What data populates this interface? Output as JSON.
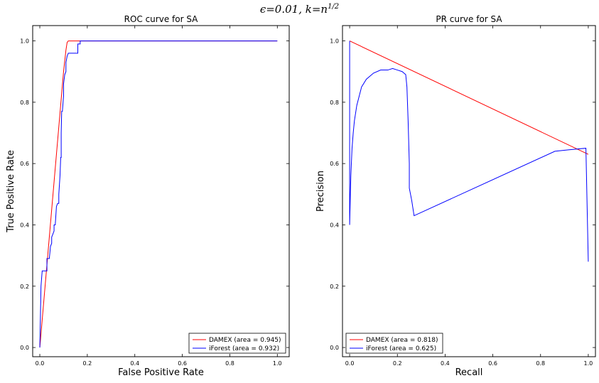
{
  "suptitle": {
    "epsilon_symbol": "ϵ",
    "epsilon_value": "=0.01, ",
    "k_symbol": "k",
    "k_value": "=n",
    "k_exponent": "1/2"
  },
  "colors": {
    "damex": "#ff0000",
    "iforest": "#0000ff"
  },
  "chart_data": [
    {
      "type": "line",
      "title": "ROC curve for SA",
      "xlabel": "False Positive Rate",
      "ylabel": "True Positive Rate",
      "xlim": [
        -0.03,
        1.05
      ],
      "ylim": [
        -0.03,
        1.05
      ],
      "xticks": [
        "0.0",
        "0.2",
        "0.4",
        "0.6",
        "0.8",
        "1.0"
      ],
      "yticks": [
        "0.0",
        "0.2",
        "0.4",
        "0.6",
        "0.8",
        "1.0"
      ],
      "legend_position": "bottom-right",
      "series": [
        {
          "name": "DAMEX (area = 0.945)",
          "color": "#ff0000",
          "x": [
            0.0,
            0.02,
            0.04,
            0.06,
            0.08,
            0.1,
            0.11,
            0.115,
            0.12,
            0.15,
            1.0
          ],
          "y": [
            0.0,
            0.18,
            0.36,
            0.54,
            0.72,
            0.9,
            0.97,
            0.995,
            1.0,
            1.0,
            1.0
          ]
        },
        {
          "name": "iForest (area = 0.932)",
          "color": "#0000ff",
          "x": [
            0.0,
            0.002,
            0.005,
            0.01,
            0.01,
            0.02,
            0.03,
            0.03,
            0.04,
            0.045,
            0.05,
            0.05,
            0.055,
            0.06,
            0.06,
            0.065,
            0.07,
            0.07,
            0.075,
            0.08,
            0.08,
            0.085,
            0.088,
            0.09,
            0.09,
            0.092,
            0.095,
            0.1,
            0.1,
            0.105,
            0.11,
            0.11,
            0.115,
            0.12,
            0.12,
            0.16,
            0.16,
            0.17,
            0.17,
            0.2,
            1.0
          ],
          "y": [
            0.0,
            0.08,
            0.2,
            0.25,
            0.25,
            0.25,
            0.25,
            0.29,
            0.29,
            0.33,
            0.34,
            0.36,
            0.37,
            0.38,
            0.4,
            0.4,
            0.46,
            0.46,
            0.47,
            0.47,
            0.5,
            0.56,
            0.62,
            0.62,
            0.7,
            0.77,
            0.77,
            0.82,
            0.86,
            0.89,
            0.9,
            0.93,
            0.95,
            0.96,
            0.96,
            0.96,
            0.99,
            0.99,
            1.0,
            1.0,
            1.0
          ]
        }
      ]
    },
    {
      "type": "line",
      "title": "PR curve for SA",
      "xlabel": "Recall",
      "ylabel": "Precision",
      "xlim": [
        -0.03,
        1.03
      ],
      "ylim": [
        -0.03,
        1.05
      ],
      "xticks": [
        "0.0",
        "0.2",
        "0.4",
        "0.6",
        "0.8",
        "1.0"
      ],
      "yticks": [
        "0.0",
        "0.2",
        "0.4",
        "0.6",
        "0.8",
        "1.0"
      ],
      "legend_position": "bottom-left",
      "series": [
        {
          "name": "DAMEX (area = 0.818)",
          "color": "#ff0000",
          "x": [
            0.0,
            1.0,
            1.0
          ],
          "y": [
            1.0,
            0.63,
            0.63
          ]
        },
        {
          "name": "iForest (area = 0.625)",
          "color": "#0000ff",
          "x": [
            0.0,
            0.0,
            0.003,
            0.005,
            0.01,
            0.015,
            0.02,
            0.03,
            0.04,
            0.05,
            0.07,
            0.1,
            0.13,
            0.16,
            0.18,
            0.2,
            0.22,
            0.235,
            0.24,
            0.245,
            0.25,
            0.25,
            0.26,
            0.27,
            0.86,
            0.92,
            0.99,
            1.0,
            1.0
          ],
          "y": [
            1.0,
            0.4,
            0.5,
            0.56,
            0.65,
            0.7,
            0.74,
            0.79,
            0.82,
            0.85,
            0.875,
            0.895,
            0.905,
            0.905,
            0.91,
            0.905,
            0.9,
            0.89,
            0.85,
            0.74,
            0.6,
            0.52,
            0.48,
            0.43,
            0.64,
            0.645,
            0.65,
            0.28,
            0.28
          ]
        }
      ]
    }
  ]
}
